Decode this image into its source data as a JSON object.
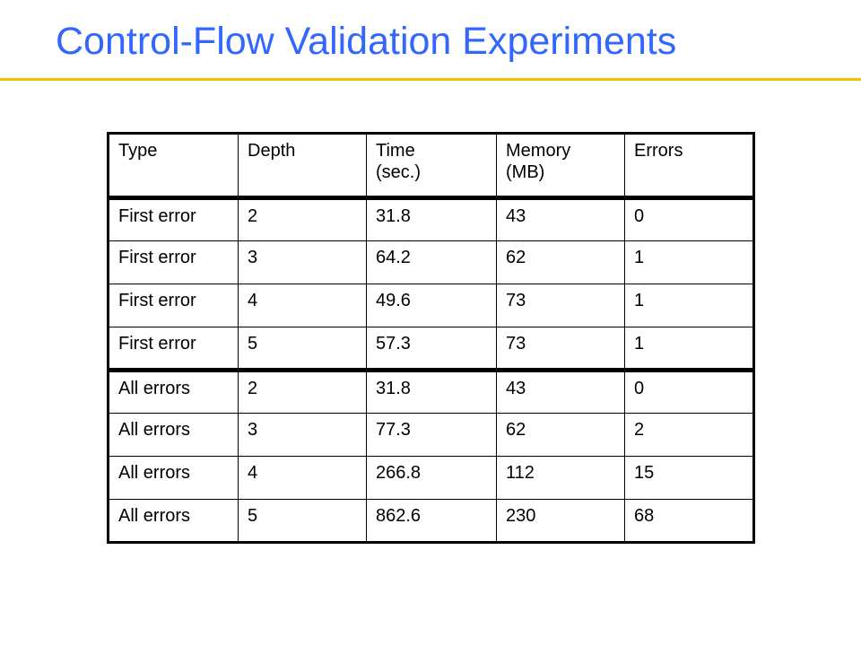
{
  "slide": {
    "title": "Control-Flow Validation Experiments",
    "accent_color": "#3366ff",
    "rule_color": "#f2c200"
  },
  "table": {
    "headers": [
      "Type",
      "Depth",
      "Time\n(sec.)",
      "Memory\n(MB)",
      "Errors"
    ],
    "rows": [
      [
        "First error",
        "2",
        "31.8",
        "43",
        "0"
      ],
      [
        "First error",
        "3",
        "64.2",
        "62",
        "1"
      ],
      [
        "First error",
        "4",
        "49.6",
        "73",
        "1"
      ],
      [
        "First error",
        "5",
        "57.3",
        "73",
        "1"
      ],
      [
        "All errors",
        "2",
        "31.8",
        "43",
        "0"
      ],
      [
        "All errors",
        "3",
        "77.3",
        "62",
        "2"
      ],
      [
        "All errors",
        "4",
        "266.8",
        "112",
        "15"
      ],
      [
        "All errors",
        "5",
        "862.6",
        "230",
        "68"
      ]
    ]
  }
}
